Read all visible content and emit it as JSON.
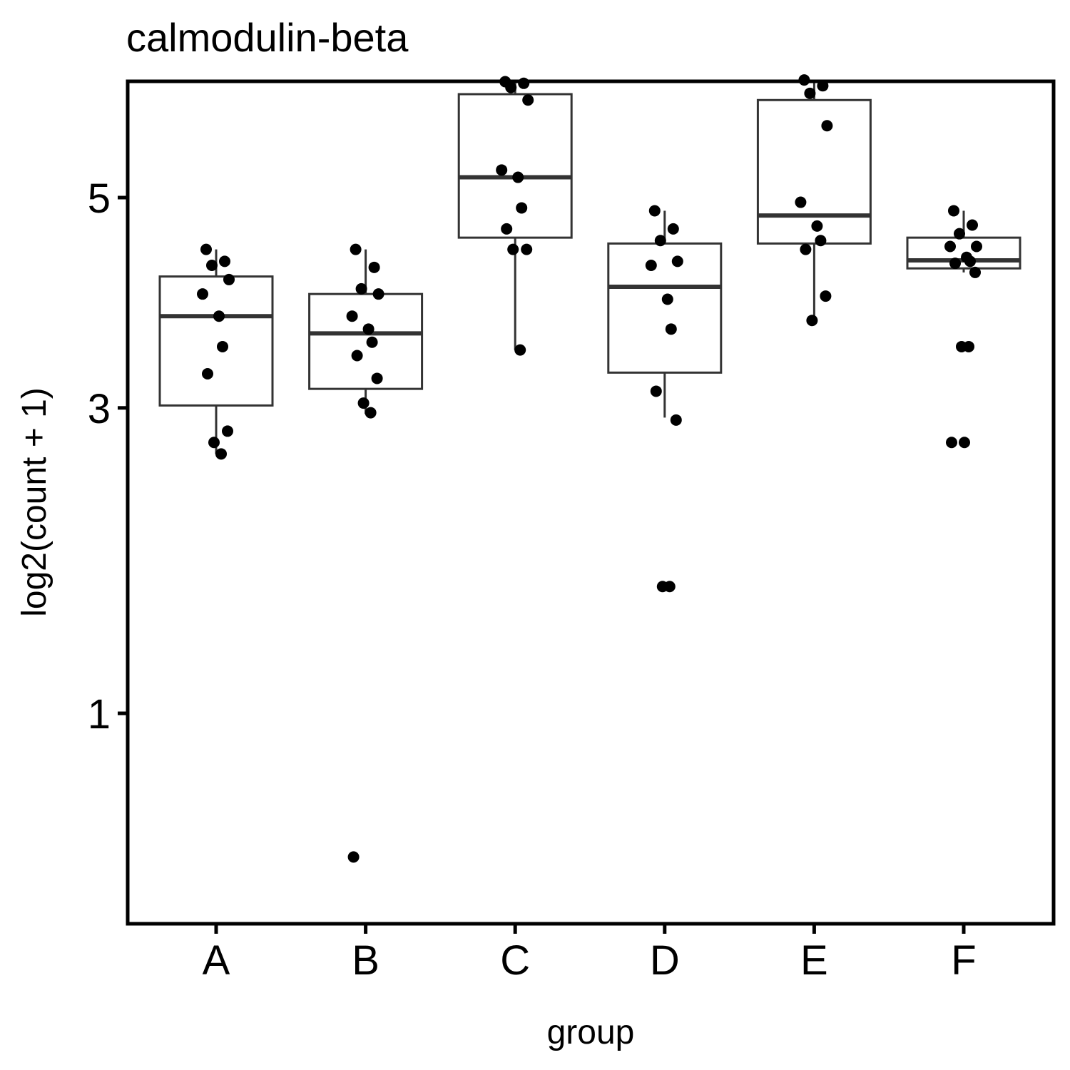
{
  "chart_data": {
    "type": "boxplot",
    "title": "calmodulin-beta",
    "xlabel": "group",
    "ylabel": "log2(count + 1)",
    "y_scale": "sqrt",
    "ylim": [
      0.32,
      6.5
    ],
    "y_ticks": [
      1,
      3,
      5
    ],
    "categories": [
      "A",
      "B",
      "C",
      "D",
      "E",
      "F"
    ],
    "grid": false,
    "legend": "none",
    "colors": {
      "box_stroke": "#333333",
      "point": "#000000",
      "frame": "#000000"
    },
    "boxes": [
      {
        "group": "A",
        "whisker_low": 2.63,
        "q1": 3.02,
        "median": 3.81,
        "q3": 4.19,
        "whisker_high": 4.46
      },
      {
        "group": "B",
        "whisker_low": 2.95,
        "q1": 3.16,
        "median": 3.65,
        "q3": 4.02,
        "whisker_high": 4.46
      },
      {
        "group": "C",
        "whisker_low": 3.5,
        "q1": 4.58,
        "median": 5.22,
        "q3": 6.17,
        "whisker_high": 6.32
      },
      {
        "group": "D",
        "whisker_low": 2.92,
        "q1": 3.3,
        "median": 4.09,
        "q3": 4.52,
        "whisker_high": 4.86
      },
      {
        "group": "E",
        "whisker_low": 3.81,
        "q1": 4.52,
        "median": 4.81,
        "q3": 6.1,
        "whisker_high": 6.32
      },
      {
        "group": "F",
        "whisker_low": 4.23,
        "q1": 4.27,
        "median": 4.35,
        "q3": 4.58,
        "whisker_high": 4.86
      }
    ],
    "points": [
      {
        "group": "A",
        "values": [
          4.46,
          4.34,
          4.3,
          4.16,
          4.02,
          3.81,
          3.53,
          3.29,
          2.81,
          2.72,
          2.63
        ]
      },
      {
        "group": "B",
        "values": [
          4.46,
          4.28,
          4.07,
          4.02,
          3.81,
          3.69,
          3.57,
          3.45,
          3.25,
          3.04,
          2.96,
          0.43
        ]
      },
      {
        "group": "C",
        "values": [
          6.32,
          6.3,
          6.25,
          6.1,
          5.3,
          5.22,
          4.89,
          4.67,
          4.46,
          4.46,
          3.5
        ]
      },
      {
        "group": "D",
        "values": [
          4.86,
          4.67,
          4.55,
          4.34,
          4.3,
          3.97,
          3.69,
          3.14,
          2.9,
          1.7,
          1.7
        ]
      },
      {
        "group": "E",
        "values": [
          6.34,
          6.27,
          6.18,
          5.8,
          4.95,
          4.7,
          4.55,
          4.46,
          4.0,
          3.77
        ]
      },
      {
        "group": "F",
        "values": [
          4.86,
          4.71,
          4.62,
          4.49,
          4.49,
          4.38,
          4.34,
          4.32,
          4.23,
          3.53,
          3.53,
          2.72,
          2.72
        ]
      }
    ]
  }
}
